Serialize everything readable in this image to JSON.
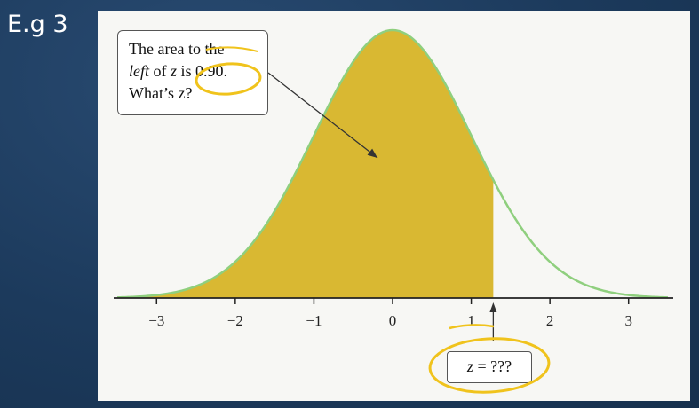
{
  "slide": {
    "label": "E.g 3"
  },
  "callout": {
    "line1": "The area to the",
    "line2_italic": "left",
    "line2_mid": " of ",
    "line2_var": "z",
    "line2_rest": " is 0.90.",
    "line3": "What’s z?"
  },
  "answer_box": {
    "var": "z",
    "text": " = ???"
  },
  "colors": {
    "shaded_area": "#d9b832",
    "curve": "#8fcf7e",
    "ink_annotation": "#f0c31c",
    "axis": "#222222"
  },
  "chart_data": {
    "type": "area",
    "distribution": "standard normal",
    "mean": 0,
    "sd": 1,
    "xlim": [
      -3.5,
      3.5
    ],
    "xticks": [
      -3,
      -2,
      -1,
      0,
      1,
      2,
      3
    ],
    "xtick_labels": [
      "−3",
      "−2",
      "−1",
      "0",
      "1",
      "2",
      "3"
    ],
    "shaded_left_of": 1.28,
    "shaded_area": 0.9,
    "arrow_at": 1.28,
    "grid": false
  }
}
